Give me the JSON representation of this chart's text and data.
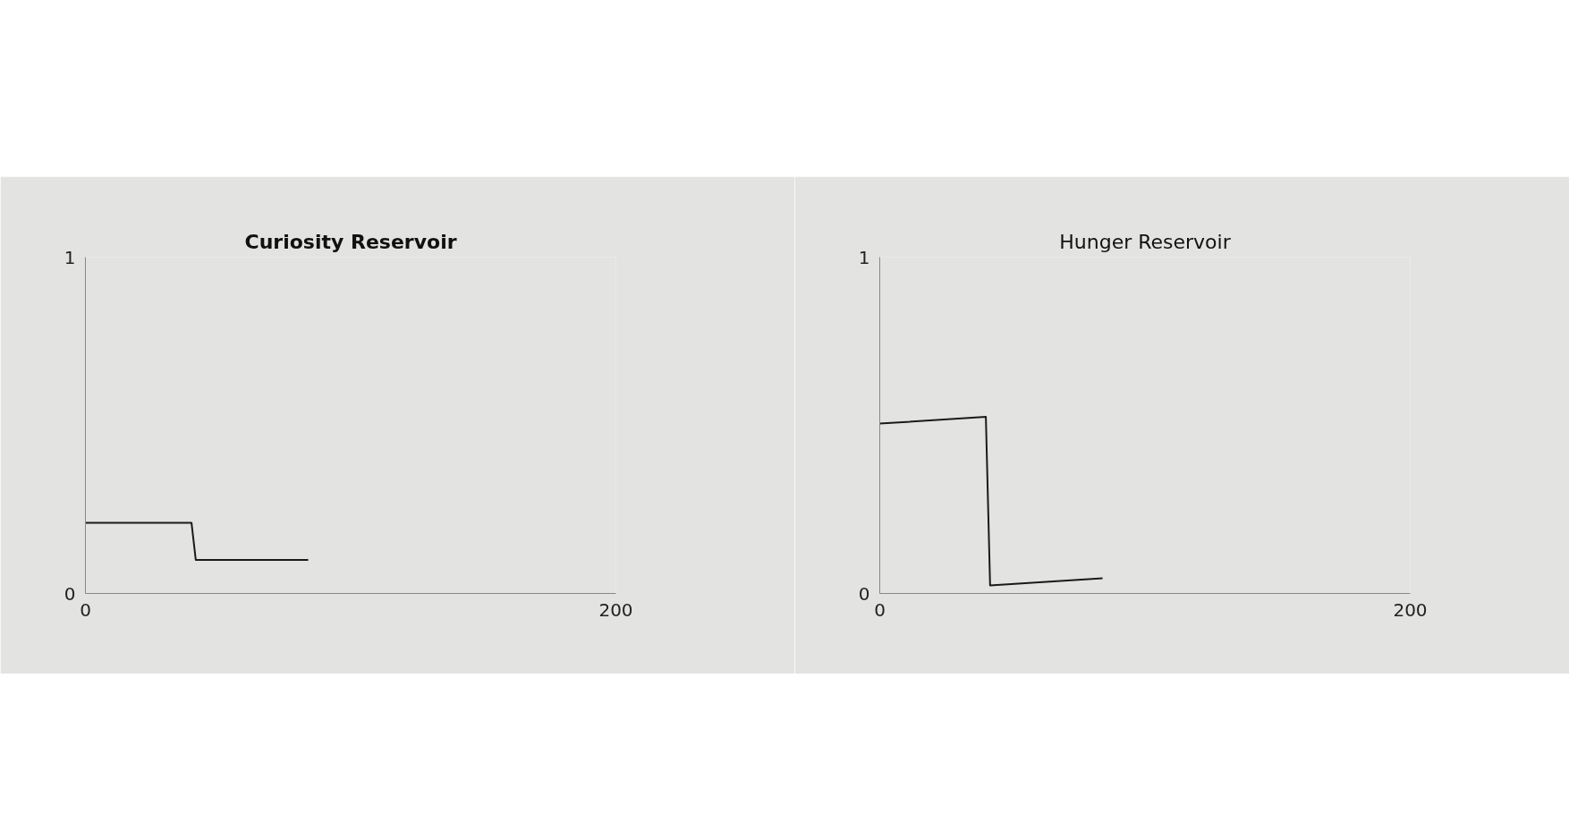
{
  "chart_data": [
    {
      "type": "line",
      "title": "Curiosity Reservoir",
      "x": [
        0,
        40,
        41.6,
        84
      ],
      "series": [
        {
          "color": "#1a1a1a",
          "values": [
            0.21,
            0.21,
            0.1,
            0.1
          ]
        }
      ],
      "xlim": [
        0,
        200
      ],
      "ylim": [
        0,
        1
      ],
      "xticks": [
        0,
        200
      ],
      "yticks": [
        0,
        1
      ],
      "marker": "none",
      "line_style": "solid"
    },
    {
      "type": "line",
      "title": "Hunger Reservoir",
      "x": [
        0,
        40,
        41.6,
        84
      ],
      "series": [
        {
          "color": "#1a1a1a",
          "values": [
            0.505,
            0.525,
            0.024,
            0.045
          ]
        }
      ],
      "xlim": [
        0,
        200
      ],
      "ylim": [
        0,
        1
      ],
      "xticks": [
        0,
        200
      ],
      "yticks": [
        0,
        1
      ],
      "marker": "none",
      "line_style": "solid"
    }
  ]
}
